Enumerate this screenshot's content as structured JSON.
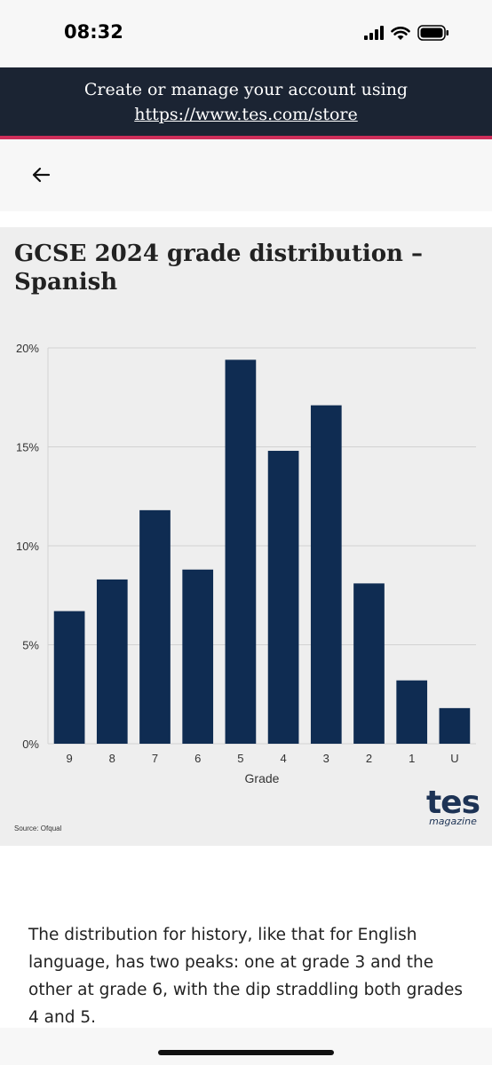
{
  "status_bar": {
    "time": "08:32"
  },
  "banner": {
    "line1": "Create or manage your account using",
    "link": "https://www.tes.com/store"
  },
  "article": {
    "chart_title": "GCSE 2024 grade distribution – Spanish",
    "source": "Source: Ofqual",
    "logo_word": "tes",
    "logo_sub": "magazine",
    "paragraph": "The distribution for history, like that for English language, has two peaks: one at grade 3 and the other at grade 6, with the dip straddling both grades 4 and 5."
  },
  "chart_data": {
    "type": "bar",
    "title": "GCSE 2024 grade distribution – Spanish",
    "xlabel": "Grade",
    "ylabel": "",
    "categories": [
      "9",
      "8",
      "7",
      "6",
      "5",
      "4",
      "3",
      "2",
      "1",
      "U"
    ],
    "values": [
      6.7,
      8.3,
      11.8,
      8.8,
      19.4,
      14.8,
      17.1,
      8.1,
      3.2,
      1.8
    ],
    "ylim": [
      0,
      20
    ],
    "yticks": [
      0,
      5,
      10,
      15,
      20
    ],
    "ytick_labels": [
      "0%",
      "5%",
      "10%",
      "15%",
      "20%"
    ],
    "grid": true,
    "bar_color": "#0f2c52"
  }
}
